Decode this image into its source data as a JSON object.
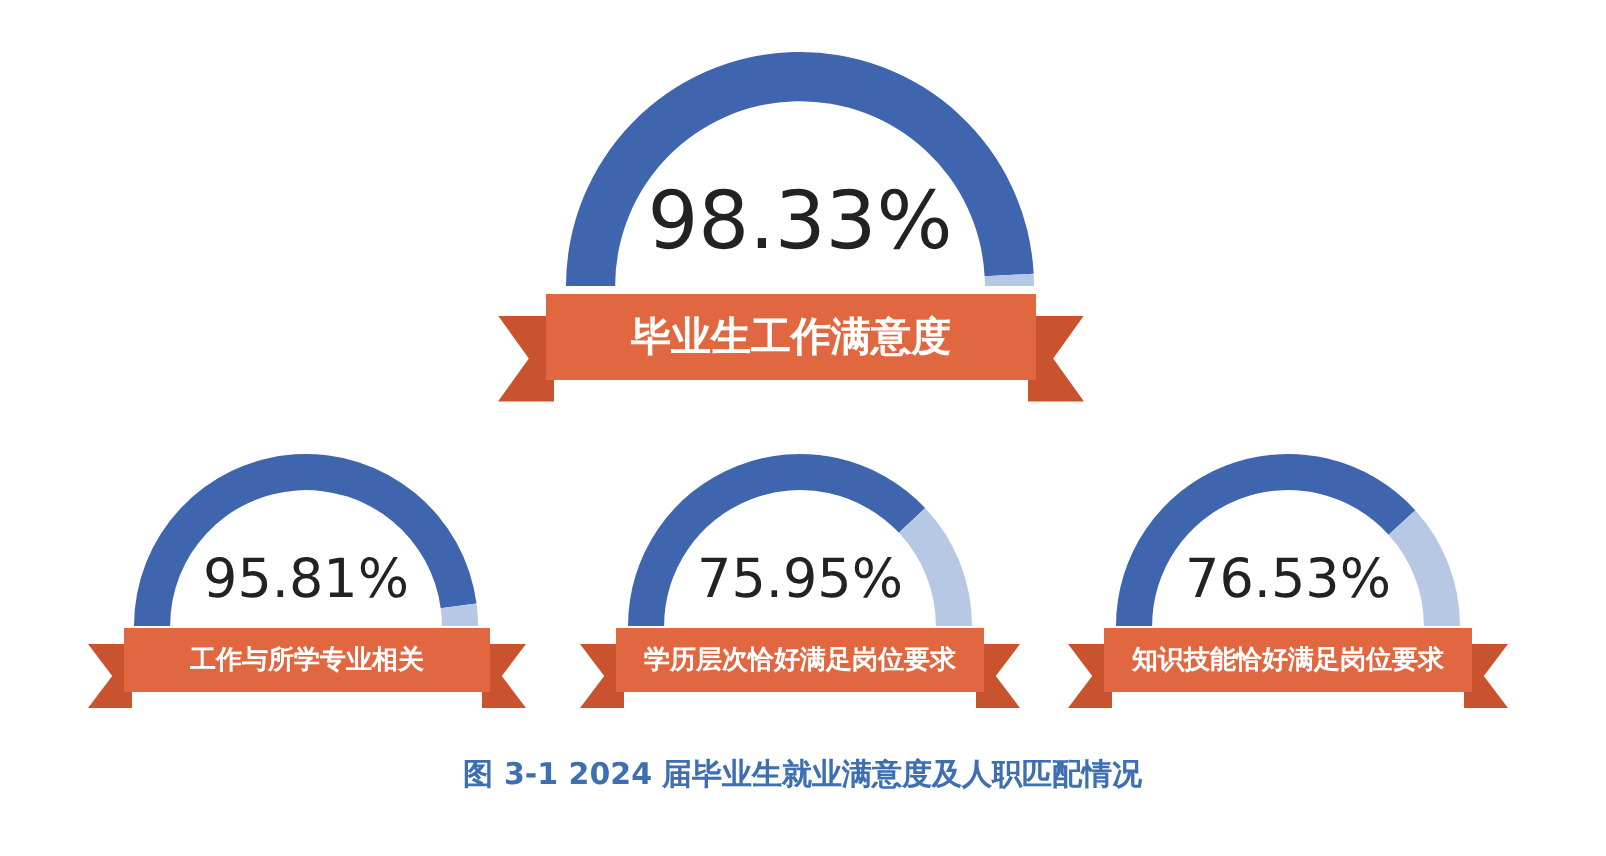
{
  "chart_data": [
    {
      "type": "donut",
      "title": "毕业生工作满意度",
      "categories": [
        null,
        null
      ],
      "values": [
        98.33,
        1.67
      ],
      "colors": [
        "#3e65ad",
        "#b7c8e5"
      ],
      "value_labels": [
        "98.33%",
        null
      ]
    },
    {
      "type": "donut",
      "title": "工作与所学专业相关",
      "categories": [
        null,
        null
      ],
      "values": [
        95.81,
        4.19
      ],
      "colors": [
        "#3e65ad",
        "#b7c8e5"
      ],
      "value_labels": [
        "95.81%",
        null
      ]
    },
    {
      "type": "donut",
      "title": "学历层次恰好满足岗位要求",
      "categories": [
        null,
        null
      ],
      "values": [
        75.95,
        24.05
      ],
      "colors": [
        "#3e65ad",
        "#b7c8e5"
      ],
      "value_labels": [
        "75.95%",
        null
      ]
    },
    {
      "type": "donut",
      "title": "知识技能恰好满足岗位要求",
      "categories": [
        null,
        null
      ],
      "values": [
        76.53,
        23.47
      ],
      "colors": [
        "#3e65ad",
        "#b7c8e5"
      ],
      "value_labels": [
        "76.53%",
        null
      ],
      "annotations": [
        "图 3-1  2024 届毕业生就业满意度及人职匹配情况"
      ]
    }
  ]
}
